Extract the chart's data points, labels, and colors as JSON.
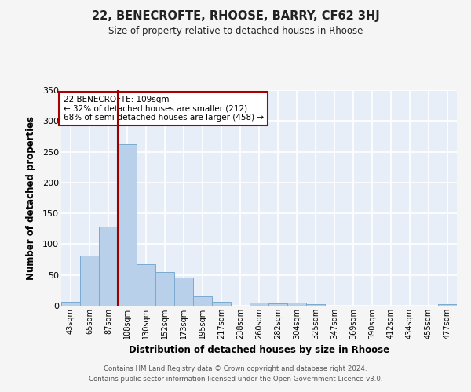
{
  "title1": "22, BENECROFTE, RHOOSE, BARRY, CF62 3HJ",
  "title2": "Size of property relative to detached houses in Rhoose",
  "xlabel": "Distribution of detached houses by size in Rhoose",
  "ylabel": "Number of detached properties",
  "categories": [
    "43sqm",
    "65sqm",
    "87sqm",
    "108sqm",
    "130sqm",
    "152sqm",
    "173sqm",
    "195sqm",
    "217sqm",
    "238sqm",
    "260sqm",
    "282sqm",
    "304sqm",
    "325sqm",
    "347sqm",
    "369sqm",
    "390sqm",
    "412sqm",
    "434sqm",
    "455sqm",
    "477sqm"
  ],
  "values": [
    6,
    81,
    129,
    262,
    67,
    55,
    46,
    15,
    7,
    0,
    5,
    4,
    5,
    2,
    0,
    0,
    0,
    0,
    0,
    0,
    3
  ],
  "bar_color": "#b8d0ea",
  "bar_edge_color": "#7aaad0",
  "vline_index": 3,
  "vline_color": "#990000",
  "annotation_text": "22 BENECROFTE: 109sqm\n← 32% of detached houses are smaller (212)\n68% of semi-detached houses are larger (458) →",
  "annotation_box_color": "#ffffff",
  "annotation_box_edge": "#aa0000",
  "ylim": [
    0,
    350
  ],
  "yticks": [
    0,
    50,
    100,
    150,
    200,
    250,
    300,
    350
  ],
  "bg_color": "#e8eef8",
  "grid_color": "#ffffff",
  "fig_bg_color": "#f5f5f5",
  "footer": "Contains HM Land Registry data © Crown copyright and database right 2024.\nContains public sector information licensed under the Open Government Licence v3.0."
}
